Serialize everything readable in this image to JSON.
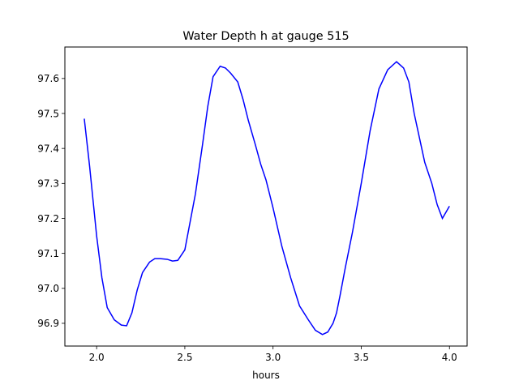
{
  "chart_data": {
    "type": "line",
    "title": "Water Depth h at gauge 515",
    "xlabel": "hours",
    "ylabel": "",
    "xlim": [
      1.82,
      4.1
    ],
    "ylim": [
      96.835,
      97.69
    ],
    "grid": false,
    "colors": {
      "line": "#0000ff",
      "axes": "#000000",
      "background": "#ffffff"
    },
    "xticks": [
      2.0,
      2.5,
      3.0,
      3.5,
      4.0
    ],
    "xtick_labels": [
      "2.0",
      "2.5",
      "3.0",
      "3.5",
      "4.0"
    ],
    "yticks": [
      96.9,
      97.0,
      97.1,
      97.2,
      97.3,
      97.4,
      97.5,
      97.6
    ],
    "ytick_labels": [
      "96.9",
      "97.0",
      "97.1",
      "97.2",
      "97.3",
      "97.4",
      "97.5",
      "97.6"
    ],
    "series": [
      {
        "x": [
          1.93,
          1.96,
          2.0,
          2.03,
          2.06,
          2.1,
          2.14,
          2.17,
          2.2,
          2.23,
          2.26,
          2.3,
          2.33,
          2.36,
          2.4,
          2.43,
          2.46,
          2.5,
          2.53,
          2.56,
          2.6,
          2.63,
          2.66,
          2.7,
          2.73,
          2.76,
          2.8,
          2.83,
          2.86,
          2.9,
          2.93,
          2.96,
          3.0,
          3.05,
          3.1,
          3.15,
          3.2,
          3.24,
          3.28,
          3.31,
          3.34,
          3.36,
          3.38,
          3.41,
          3.45,
          3.5,
          3.55,
          3.6,
          3.65,
          3.7,
          3.74,
          3.77,
          3.8,
          3.83,
          3.86,
          3.9,
          3.93,
          3.96,
          4.0
        ],
        "y": [
          97.485,
          97.35,
          97.15,
          97.03,
          96.945,
          96.91,
          96.895,
          96.893,
          96.93,
          96.995,
          97.045,
          97.075,
          97.085,
          97.085,
          97.083,
          97.078,
          97.08,
          97.11,
          97.19,
          97.27,
          97.41,
          97.52,
          97.605,
          97.635,
          97.63,
          97.615,
          97.59,
          97.54,
          97.48,
          97.41,
          97.355,
          97.31,
          97.23,
          97.12,
          97.03,
          96.95,
          96.91,
          96.88,
          96.868,
          96.875,
          96.9,
          96.93,
          96.98,
          97.06,
          97.16,
          97.3,
          97.45,
          97.57,
          97.625,
          97.648,
          97.63,
          97.59,
          97.5,
          97.43,
          97.36,
          97.3,
          97.24,
          97.2,
          97.235
        ]
      }
    ]
  }
}
